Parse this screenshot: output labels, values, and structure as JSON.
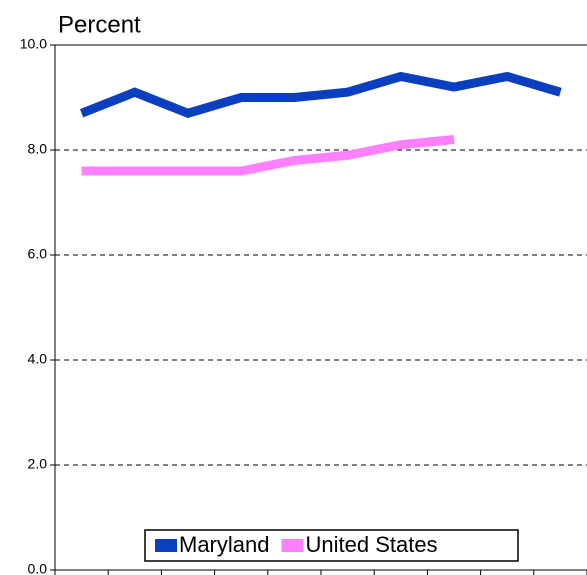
{
  "chart_data": {
    "type": "line",
    "title": "Percent",
    "categories": [
      null,
      null,
      null,
      null,
      null,
      null,
      null,
      null,
      null,
      null
    ],
    "series": [
      {
        "name": "Maryland",
        "color": "#0a3fbf",
        "values": [
          8.7,
          9.1,
          8.7,
          9.0,
          9.0,
          9.1,
          9.4,
          9.2,
          9.4,
          9.1
        ]
      },
      {
        "name": "United States",
        "color": "#ff80ff",
        "values": [
          7.6,
          7.6,
          7.6,
          7.6,
          7.8,
          7.9,
          8.1,
          8.2,
          null,
          null
        ]
      }
    ],
    "ylim": [
      0,
      10
    ],
    "yticks": [
      {
        "value": 0,
        "label": "0.0"
      },
      {
        "value": 2,
        "label": "2.0"
      },
      {
        "value": 4,
        "label": "4.0"
      },
      {
        "value": 6,
        "label": "6.0"
      },
      {
        "value": 8,
        "label": "8.0"
      },
      {
        "value": 10,
        "label": "10.0"
      }
    ],
    "grid": true,
    "legend": "bottom"
  }
}
